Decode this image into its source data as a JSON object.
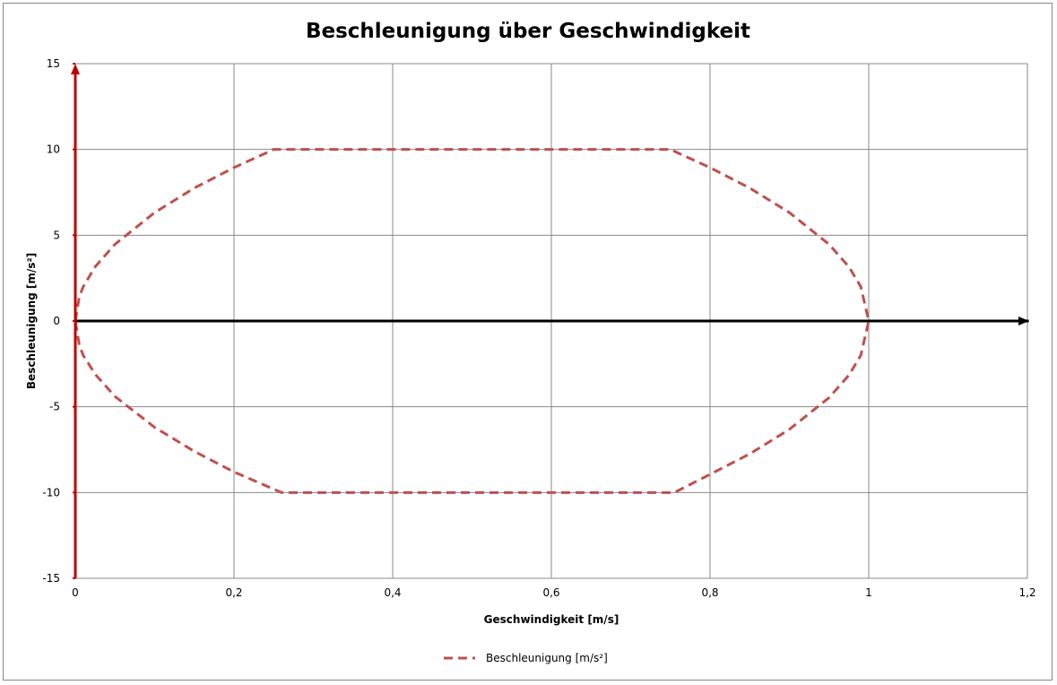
{
  "chart_data": {
    "type": "line",
    "title": "Beschleunigung über Geschwindigkeit",
    "xlabel": "Geschwindigkeit [m/s]",
    "ylabel": "Beschleunigung [m/s²]",
    "xlim": [
      0,
      1.2
    ],
    "ylim": [
      -15,
      15
    ],
    "xticks": [
      "0",
      "0,2",
      "0,4",
      "0,6",
      "0,8",
      "1",
      "1,2"
    ],
    "yticks": [
      "15",
      "10",
      "5",
      "0",
      "-5",
      "-10",
      "-15"
    ],
    "grid": true,
    "legend_position": "bottom",
    "series": [
      {
        "name": "Beschleunigung [m/s²]",
        "color": "#c0504d",
        "style": "dashed",
        "x": [
          0,
          0.005,
          0.01,
          0.025,
          0.05,
          0.1,
          0.15,
          0.2,
          0.25,
          0.75,
          0.8,
          0.85,
          0.9,
          0.95,
          0.975,
          0.99,
          1,
          0.99,
          0.975,
          0.95,
          0.9,
          0.85,
          0.8,
          0.755,
          0.26,
          0.2,
          0.15,
          0.1,
          0.05,
          0.025,
          0.01,
          0.005,
          0
        ],
        "y": [
          0,
          1.41,
          2,
          3.16,
          4.47,
          6.32,
          7.75,
          8.94,
          10,
          10,
          8.94,
          7.75,
          6.32,
          4.47,
          3.16,
          2,
          0,
          -2,
          -3.16,
          -4.47,
          -6.32,
          -7.75,
          -8.94,
          -10,
          -10,
          -8.8,
          -7.6,
          -6.2,
          -4.4,
          -3.1,
          -2,
          -1.41,
          0
        ]
      }
    ],
    "axis_colors": {
      "y_axis": "#c00000",
      "x_axis": "#000000"
    }
  }
}
